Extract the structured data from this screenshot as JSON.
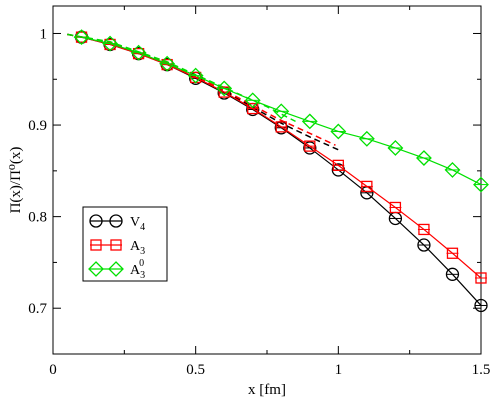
{
  "chart_data": {
    "type": "line",
    "xlabel": "x [fm]",
    "ylabel": "Π(x)/Π⁰(x)",
    "xlim": [
      0,
      1.5
    ],
    "ylim": [
      0.65,
      1.03
    ],
    "xticks": [
      0,
      0.5,
      1,
      1.5
    ],
    "xtick_labels": [
      "0",
      "0.5",
      "1",
      "1.5"
    ],
    "yticks": [
      0.7,
      0.8,
      0.9,
      1.0
    ],
    "ytick_labels": [
      "0.7",
      "0.8",
      "0.9",
      "1"
    ],
    "grid": false,
    "legend_position": "lower-left",
    "series": [
      {
        "name": "V_4",
        "legend_main": "V",
        "legend_sub": "4",
        "legend_sup": "",
        "color": "#000000",
        "marker": "circle",
        "x": [
          0.1,
          0.2,
          0.3,
          0.4,
          0.5,
          0.6,
          0.7,
          0.8,
          0.9,
          1.0,
          1.1,
          1.2,
          1.3,
          1.4,
          1.5
        ],
        "y": [
          0.996,
          0.988,
          0.978,
          0.966,
          0.951,
          0.935,
          0.917,
          0.897,
          0.875,
          0.851,
          0.826,
          0.798,
          0.769,
          0.737,
          0.703
        ]
      },
      {
        "name": "A_3",
        "legend_main": "A",
        "legend_sub": "3",
        "legend_sup": "",
        "color": "#ff0000",
        "marker": "square",
        "x": [
          0.1,
          0.2,
          0.3,
          0.4,
          0.5,
          0.6,
          0.7,
          0.8,
          0.9,
          1.0,
          1.1,
          1.2,
          1.3,
          1.4,
          1.5
        ],
        "y": [
          0.996,
          0.988,
          0.978,
          0.966,
          0.952,
          0.936,
          0.918,
          0.898,
          0.877,
          0.856,
          0.833,
          0.81,
          0.786,
          0.76,
          0.733
        ]
      },
      {
        "name": "A_3^0",
        "legend_main": "A",
        "legend_sub": "3",
        "legend_sup": "0",
        "color": "#00e000",
        "marker": "diamond",
        "x": [
          0.1,
          0.2,
          0.3,
          0.4,
          0.5,
          0.6,
          0.7,
          0.8,
          0.9,
          1.0,
          1.1,
          1.2,
          1.3,
          1.4,
          1.5
        ],
        "y": [
          0.996,
          0.989,
          0.979,
          0.967,
          0.954,
          0.94,
          0.927,
          0.915,
          0.904,
          0.893,
          0.885,
          0.875,
          0.864,
          0.851,
          0.835
        ]
      }
    ],
    "dashed_curves": [
      {
        "color": "#000000",
        "x": [
          0.05,
          0.2,
          0.4,
          0.6,
          0.8,
          0.9,
          1.0
        ],
        "y": [
          0.999,
          0.99,
          0.967,
          0.937,
          0.902,
          0.887,
          0.873
        ]
      },
      {
        "color": "#ff0000",
        "x": [
          0.05,
          0.2,
          0.4,
          0.6,
          0.8,
          0.9,
          0.99
        ],
        "y": [
          0.999,
          0.99,
          0.968,
          0.938,
          0.905,
          0.891,
          0.878
        ]
      },
      {
        "color": "#00e000",
        "x": [
          0.05,
          0.2,
          0.4,
          0.6,
          0.75,
          0.85
        ],
        "y": [
          0.999,
          0.991,
          0.969,
          0.941,
          0.92,
          0.904
        ]
      }
    ]
  }
}
